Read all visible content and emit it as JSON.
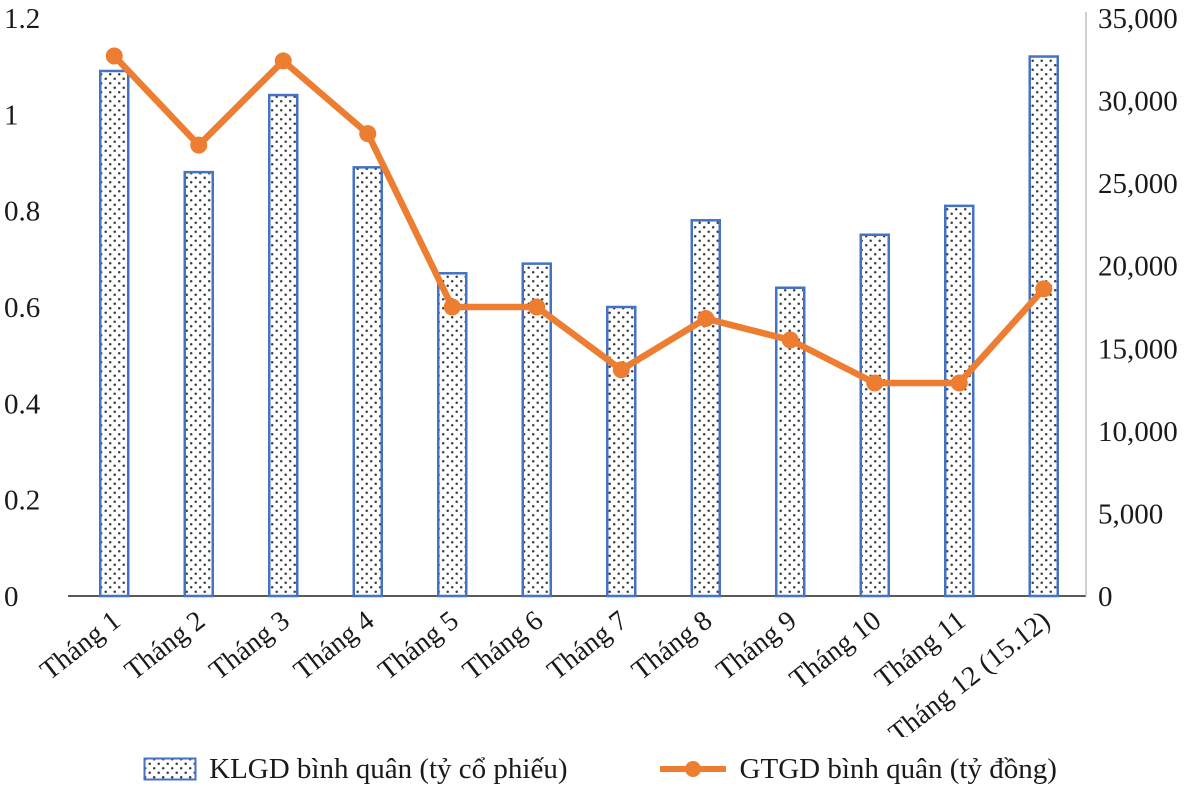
{
  "chart_data": {
    "type": "bar",
    "subtype": "combo-bar-line-dual-axis",
    "title": "",
    "xlabel": "",
    "ylabel_left": "",
    "ylabel_right": "",
    "grid": false,
    "legend_position": "bottom",
    "categories": [
      "Tháng 1",
      "Tháng 2",
      "Tháng 3",
      "Tháng 4",
      "Tháng 5",
      "Tháng 6",
      "Tháng 7",
      "Tháng 8",
      "Tháng 9",
      "Tháng 10",
      "Tháng 11",
      "Tháng 12 (15.12)"
    ],
    "series": [
      {
        "name": "KLGD bình quân (tỷ cổ phiếu)",
        "type": "bar",
        "axis": "left",
        "color": "#4472C4",
        "fill_style": "white-with-black-dots",
        "values": [
          1.09,
          0.88,
          1.04,
          0.89,
          0.67,
          0.69,
          0.6,
          0.78,
          0.64,
          0.75,
          0.81,
          1.12
        ]
      },
      {
        "name": "GTGD bình quân (tỷ đồng)",
        "type": "line",
        "axis": "right",
        "color": "#ED7D31",
        "marker": "circle",
        "values": [
          32700,
          27300,
          32400,
          28000,
          17500,
          17500,
          13700,
          16800,
          15500,
          12900,
          12900,
          18600
        ]
      }
    ],
    "left_axis": {
      "min": 0,
      "max": 1.2,
      "step": 0.2,
      "ticks": [
        "0",
        "0.2",
        "0.4",
        "0.6",
        "0.8",
        "1",
        "1.2"
      ]
    },
    "right_axis": {
      "min": 0,
      "max": 35000,
      "step": 5000,
      "ticks": [
        "0",
        "5,000",
        "10,000",
        "15,000",
        "20,000",
        "25,000",
        "30,000",
        "35,000"
      ]
    }
  },
  "legend": {
    "items": [
      {
        "label": "KLGD bình quân (tỷ cổ phiếu)",
        "swatch": "dotted-bar"
      },
      {
        "label": "GTGD bình quân (tỷ đồng)",
        "swatch": "line-with-marker"
      }
    ]
  },
  "colors": {
    "bar_border": "#4472C4",
    "line": "#ED7D31",
    "dot": "#3f3f3f",
    "axis_line": "#595959",
    "right_axis_line": "#BFBFBF",
    "text": "#1A1A1A"
  }
}
